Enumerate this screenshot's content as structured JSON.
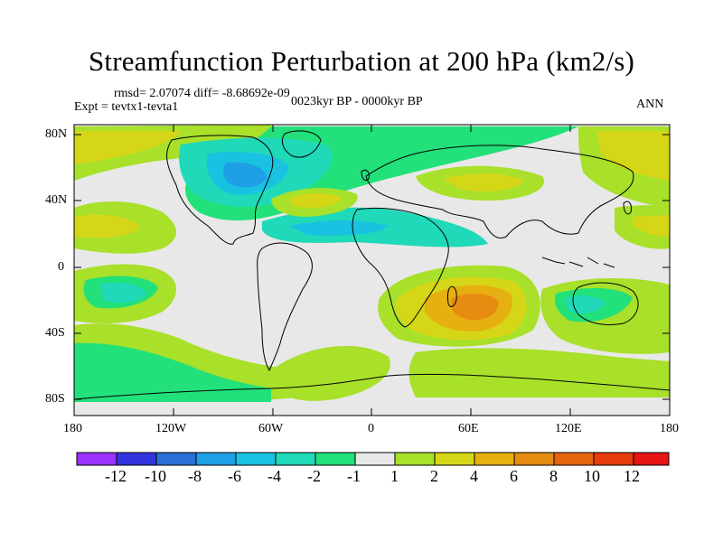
{
  "title": "Streamfunction Perturbation at 200 hPa (km2/s)",
  "stats": "rmsd= 2.07074 diff= -8.68692e-09",
  "experiment": "Expt = tevtx1-tevta1",
  "period": "0023kyr BP - 0000kyr BP",
  "season": "ANN",
  "lat_ticks": [
    "80N",
    "40N",
    "0",
    "40S",
    "80S"
  ],
  "lon_ticks": [
    "180",
    "120W",
    "60W",
    "0",
    "60E",
    "120E",
    "180"
  ],
  "colorbar": {
    "labels": [
      "-12",
      "-10",
      "-8",
      "-6",
      "-4",
      "-2",
      "-1",
      "1",
      "2",
      "4",
      "6",
      "8",
      "10",
      "12"
    ],
    "colors": [
      "#9933ff",
      "#3333dd",
      "#2a6fd6",
      "#1e9fe6",
      "#19c2e0",
      "#1fd9b8",
      "#22e07a",
      "#e8e8e8",
      "#a8e02a",
      "#d6d618",
      "#e6b010",
      "#e68c10",
      "#e6640c",
      "#e63c0c",
      "#e61414"
    ]
  }
}
